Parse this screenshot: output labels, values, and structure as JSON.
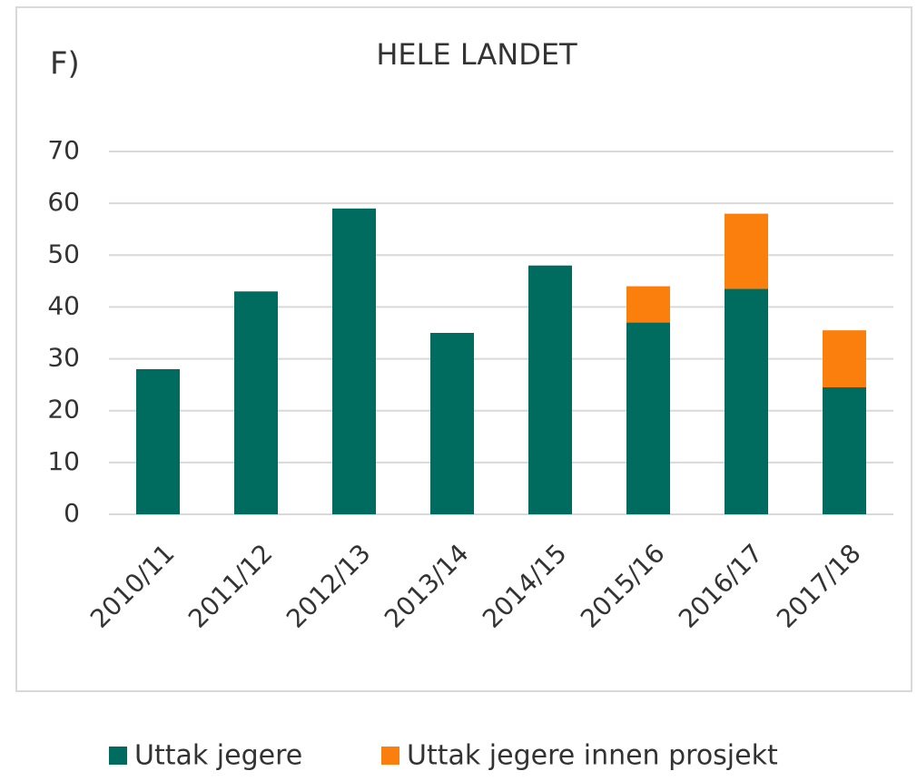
{
  "chart_data": {
    "type": "stacked_bar",
    "title": "HELE LANDET",
    "annotation": "F)",
    "categories": [
      "2010/11",
      "2011/12",
      "2012/13",
      "2013/14",
      "2014/15",
      "2015/16",
      "2016/17",
      "2017/18"
    ],
    "series": [
      {
        "name": "Uttak jegere",
        "color": "#006b5f",
        "values": [
          28,
          43,
          59,
          35,
          48,
          37,
          43.5,
          24.5
        ]
      },
      {
        "name": "Uttak jegere innen prosjekt",
        "color": "#fb7f0c",
        "values": [
          0,
          0,
          0,
          0,
          0,
          7,
          14.5,
          11
        ]
      }
    ],
    "ylim": [
      0,
      70
    ],
    "yticks": [
      0,
      10,
      20,
      30,
      40,
      50,
      60,
      70
    ],
    "grid": true,
    "legend": "bottom"
  }
}
